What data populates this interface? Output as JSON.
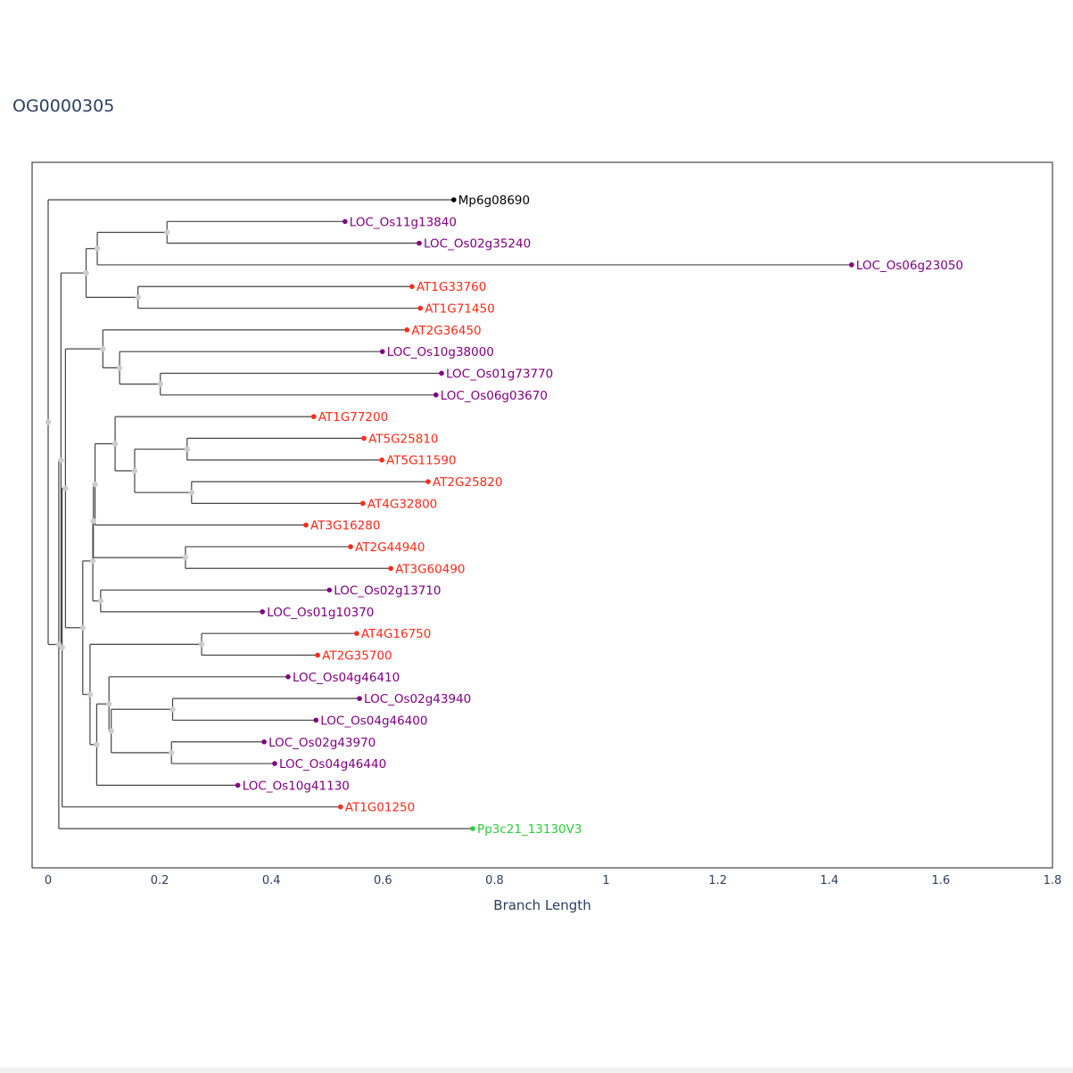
{
  "title": "OG0000305",
  "chart_data": {
    "type": "dendrogram",
    "title": "OG0000305",
    "xlabel": "Branch Length",
    "xlim": [
      0,
      1.8
    ],
    "xticks": [
      "0",
      "0.2",
      "0.4",
      "0.6",
      "0.8",
      "1",
      "1.2",
      "1.4",
      "1.6",
      "1.8"
    ],
    "xtick_values": [
      0,
      0.2,
      0.4,
      0.6,
      0.8,
      1,
      1.2,
      1.4,
      1.6,
      1.8
    ],
    "grid": false,
    "colors": {
      "Mp": "#000000",
      "LOC": "#800080",
      "AT": "#ff2a1a",
      "Pp": "#2ecc40",
      "branch": "#444444",
      "node": "#cccccc"
    },
    "tree": {
      "x": 0,
      "children": [
        {
          "label": "Mp6g08690",
          "x": 0.727,
          "group": "Mp"
        },
        {
          "x": 0.019,
          "children": [
            {
              "x": 0.023,
              "children": [
                {
                  "x": 0.068,
                  "children": [
                    {
                      "x": 0.088,
                      "children": [
                        {
                          "x": 0.213,
                          "children": [
                            {
                              "label": "LOC_Os11g13840",
                              "x": 0.532,
                              "group": "LOC"
                            },
                            {
                              "label": "LOC_Os02g35240",
                              "x": 0.665,
                              "group": "LOC"
                            }
                          ]
                        },
                        {
                          "label": "LOC_Os06g23050",
                          "x": 1.44,
                          "group": "LOC"
                        }
                      ]
                    },
                    {
                      "x": 0.161,
                      "children": [
                        {
                          "label": "AT1G33760",
                          "x": 0.652,
                          "group": "AT"
                        },
                        {
                          "label": "AT1G71450",
                          "x": 0.667,
                          "group": "AT"
                        }
                      ]
                    }
                  ]
                },
                {
                  "x": 0.025,
                  "children": [
                    {
                      "x": 0.031,
                      "children": [
                        {
                          "x": 0.098,
                          "children": [
                            {
                              "label": "AT2G36450",
                              "x": 0.643,
                              "group": "AT"
                            },
                            {
                              "x": 0.128,
                              "children": [
                                {
                                  "label": "LOC_Os10g38000",
                                  "x": 0.599,
                                  "group": "LOC"
                                },
                                {
                                  "x": 0.201,
                                  "children": [
                                    {
                                      "label": "LOC_Os01g73770",
                                      "x": 0.705,
                                      "group": "LOC"
                                    },
                                    {
                                      "label": "LOC_Os06g03670",
                                      "x": 0.695,
                                      "group": "LOC"
                                    }
                                  ]
                                }
                              ]
                            }
                          ]
                        },
                        {
                          "x": 0.062,
                          "children": [
                            {
                              "x": 0.08,
                              "children": [
                                {
                                  "x": 0.081,
                                  "children": [
                                    {
                                      "x": 0.084,
                                      "children": [
                                        {
                                          "x": 0.12,
                                          "children": [
                                            {
                                              "label": "AT1G77200",
                                              "x": 0.476,
                                              "group": "AT"
                                            },
                                            {
                                              "x": 0.155,
                                              "children": [
                                                {
                                                  "x": 0.249,
                                                  "children": [
                                                    {
                                                      "label": "AT5G25810",
                                                      "x": 0.566,
                                                      "group": "AT"
                                                    },
                                                    {
                                                      "label": "AT5G11590",
                                                      "x": 0.598,
                                                      "group": "AT"
                                                    }
                                                  ]
                                                },
                                                {
                                                  "x": 0.257,
                                                  "children": [
                                                    {
                                                      "label": "AT2G25820",
                                                      "x": 0.681,
                                                      "group": "AT"
                                                    },
                                                    {
                                                      "label": "AT4G32800",
                                                      "x": 0.564,
                                                      "group": "AT"
                                                    }
                                                  ]
                                                }
                                              ]
                                            }
                                          ]
                                        },
                                        {
                                          "label": "AT3G16280",
                                          "x": 0.462,
                                          "group": "AT"
                                        }
                                      ]
                                    },
                                    {
                                      "x": 0.246,
                                      "children": [
                                        {
                                          "label": "AT2G44940",
                                          "x": 0.542,
                                          "group": "AT"
                                        },
                                        {
                                          "label": "AT3G60490",
                                          "x": 0.614,
                                          "group": "AT"
                                        }
                                      ]
                                    }
                                  ]
                                },
                                {
                                  "x": 0.094,
                                  "children": [
                                    {
                                      "label": "LOC_Os02g13710",
                                      "x": 0.504,
                                      "group": "LOC"
                                    },
                                    {
                                      "label": "LOC_Os01g10370",
                                      "x": 0.384,
                                      "group": "LOC"
                                    }
                                  ]
                                }
                              ]
                            },
                            {
                              "x": 0.075,
                              "children": [
                                {
                                  "x": 0.275,
                                  "children": [
                                    {
                                      "label": "AT4G16750",
                                      "x": 0.553,
                                      "group": "AT"
                                    },
                                    {
                                      "label": "AT2G35700",
                                      "x": 0.483,
                                      "group": "AT"
                                    }
                                  ]
                                },
                                {
                                  "x": 0.087,
                                  "children": [
                                    {
                                      "x": 0.109,
                                      "children": [
                                        {
                                          "label": "LOC_Os04g46410",
                                          "x": 0.43,
                                          "group": "LOC"
                                        },
                                        {
                                          "x": 0.113,
                                          "children": [
                                            {
                                              "x": 0.223,
                                              "children": [
                                                {
                                                  "label": "LOC_Os02g43940",
                                                  "x": 0.558,
                                                  "group": "LOC"
                                                },
                                                {
                                                  "label": "LOC_Os04g46400",
                                                  "x": 0.48,
                                                  "group": "LOC"
                                                }
                                              ]
                                            },
                                            {
                                              "x": 0.221,
                                              "children": [
                                                {
                                                  "label": "LOC_Os02g43970",
                                                  "x": 0.387,
                                                  "group": "LOC"
                                                },
                                                {
                                                  "label": "LOC_Os04g46440",
                                                  "x": 0.406,
                                                  "group": "LOC"
                                                }
                                              ]
                                            }
                                          ]
                                        }
                                      ]
                                    },
                                    {
                                      "label": "LOC_Os10g41130",
                                      "x": 0.34,
                                      "group": "LOC"
                                    }
                                  ]
                                }
                              ]
                            }
                          ]
                        }
                      ]
                    },
                    {
                      "label": "AT1G01250",
                      "x": 0.524,
                      "group": "AT"
                    }
                  ]
                }
              ]
            },
            {
              "label": "Pp3c21_13130V3",
              "x": 0.761,
              "group": "Pp"
            }
          ]
        }
      ]
    }
  }
}
